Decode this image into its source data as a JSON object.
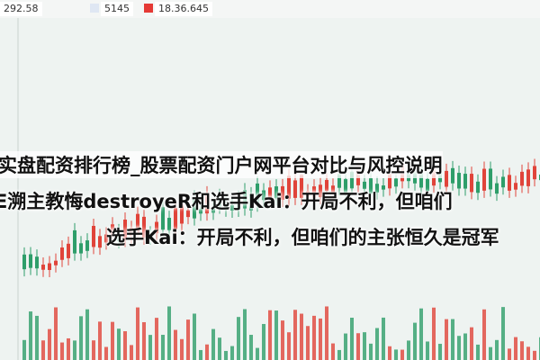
{
  "ticker": {
    "items": [
      "292.58",
      "5145",
      "18.36.645"
    ]
  },
  "headline": {
    "lines": [
      "实盘配资排行榜_股票配资门户网平台对比与风控说明",
      "E溯主教悔destroyeR和选手Kai：开局不利，但咱们",
      "选手Kai：开局不利，但咱们的主张恒久是冠军"
    ]
  }
}
